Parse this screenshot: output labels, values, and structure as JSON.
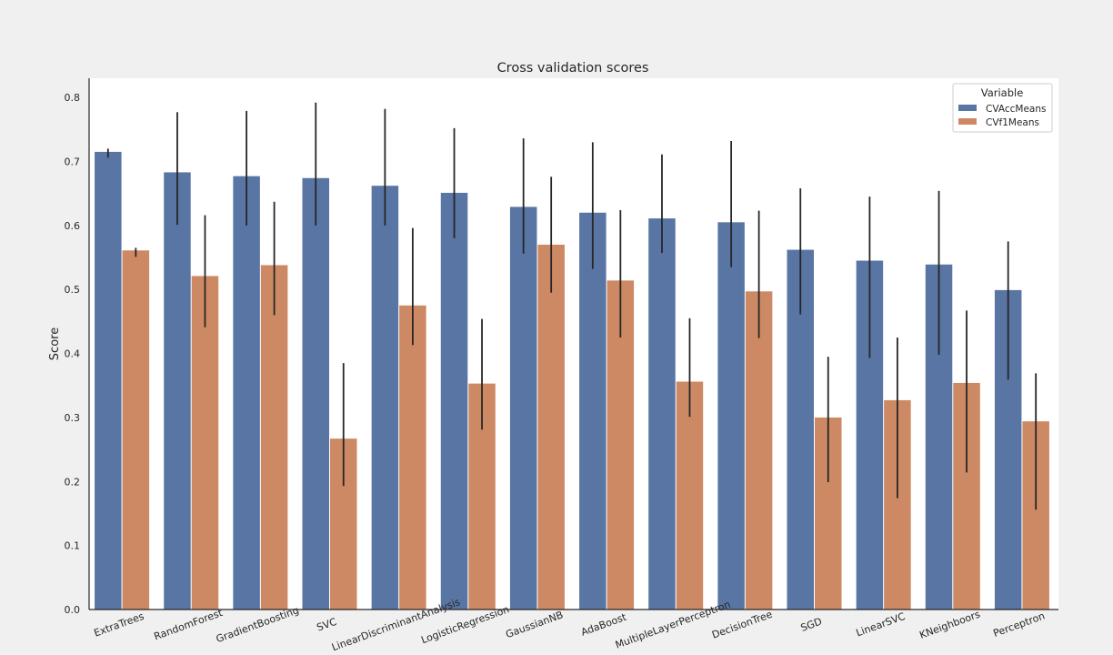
{
  "chart_data": {
    "type": "bar",
    "title": "Cross validation scores",
    "xlabel": "",
    "ylabel": "Score",
    "ylim": [
      0.0,
      0.83
    ],
    "yticks": [
      "0.0",
      "0.1",
      "0.2",
      "0.3",
      "0.4",
      "0.5",
      "0.6",
      "0.7",
      "0.8"
    ],
    "grid": false,
    "legend": {
      "title": "Variable",
      "position": "top-right"
    },
    "categories": [
      "ExtraTrees",
      "RandomForest",
      "GradientBoosting",
      "SVC",
      "LinearDiscriminantAnalysis",
      "LogisticRegression",
      "GaussianNB",
      "AdaBoost",
      "MultipleLayerPerceptron",
      "DecisionTree",
      "SGD",
      "LinearSVC",
      "KNeighboors",
      "Perceptron"
    ],
    "series": [
      {
        "name": "CVAccMeans",
        "color": "#5875a4",
        "values": [
          0.715,
          0.683,
          0.677,
          0.674,
          0.662,
          0.651,
          0.629,
          0.62,
          0.611,
          0.605,
          0.562,
          0.545,
          0.539,
          0.499
        ],
        "err_low": [
          0.706,
          0.601,
          0.6,
          0.6,
          0.6,
          0.58,
          0.556,
          0.532,
          0.557,
          0.535,
          0.461,
          0.393,
          0.398,
          0.359
        ],
        "err_high": [
          0.72,
          0.777,
          0.779,
          0.792,
          0.782,
          0.752,
          0.736,
          0.73,
          0.711,
          0.732,
          0.658,
          0.645,
          0.654,
          0.575
        ]
      },
      {
        "name": "CVf1Means",
        "color": "#cc8963",
        "values": [
          0.561,
          0.521,
          0.538,
          0.267,
          0.475,
          0.353,
          0.57,
          0.514,
          0.356,
          0.497,
          0.3,
          0.327,
          0.354,
          0.294
        ],
        "err_low": [
          0.551,
          0.441,
          0.46,
          0.193,
          0.413,
          0.281,
          0.495,
          0.425,
          0.301,
          0.424,
          0.199,
          0.174,
          0.214,
          0.156
        ],
        "err_high": [
          0.565,
          0.616,
          0.637,
          0.385,
          0.596,
          0.454,
          0.676,
          0.624,
          0.455,
          0.623,
          0.395,
          0.425,
          0.467,
          0.369
        ]
      }
    ]
  }
}
